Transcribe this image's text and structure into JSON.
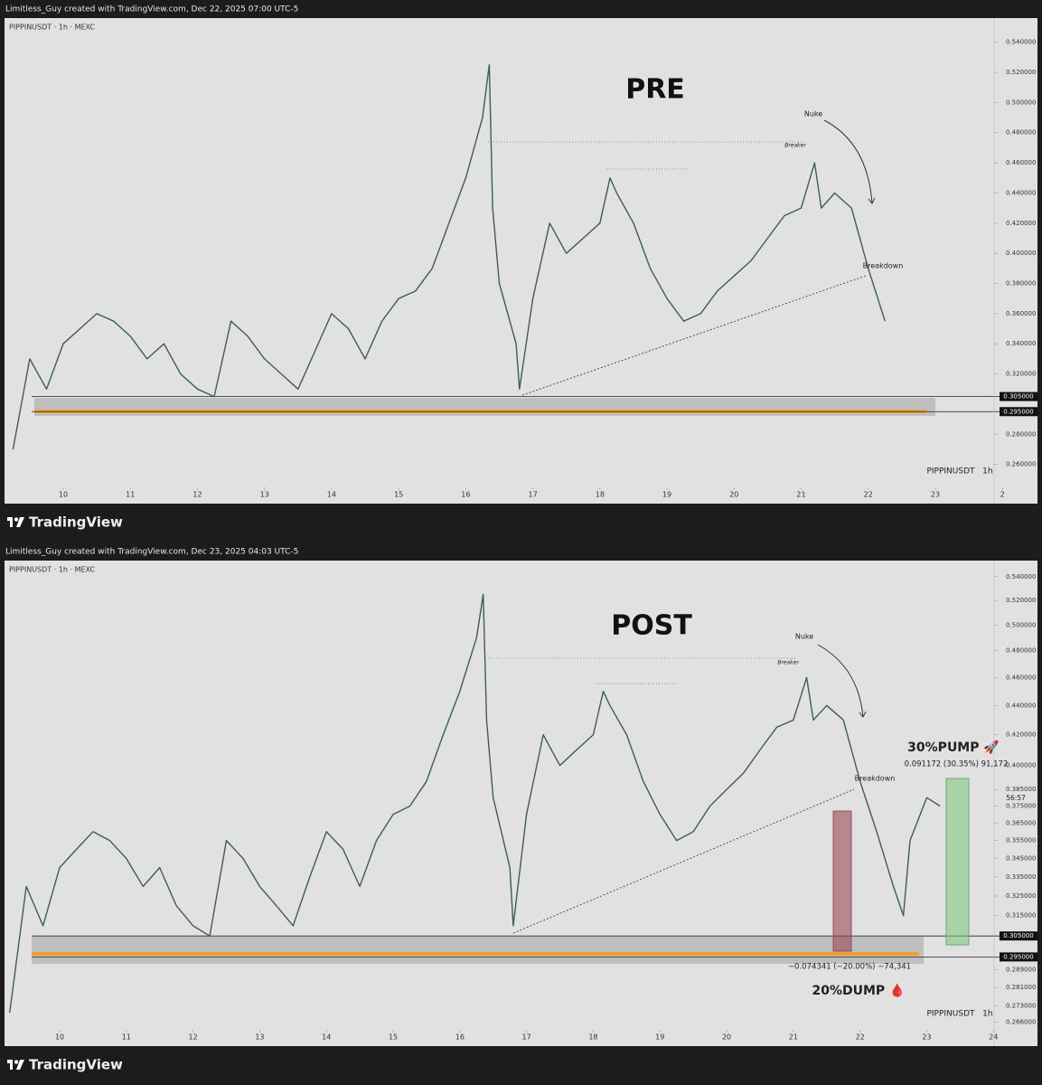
{
  "charts": [
    {
      "chart_data": {
        "type": "line",
        "header": "Limitless_Guy created with TradingView.com, Dec 22, 2025 07:00 UTC-5",
        "symbol": "PIPPINUSDT · 1h · MEXC",
        "title": "PRE",
        "watermark": "PIPPINUSDT   1h",
        "logo": "TradingView",
        "log_scale": false,
        "color": "#3b5f52",
        "x": [
          9.25,
          9.5,
          9.75,
          10,
          10.25,
          10.5,
          10.75,
          11,
          11.25,
          11.5,
          11.75,
          12,
          12.25,
          12.5,
          12.75,
          13,
          13.25,
          13.5,
          13.75,
          14,
          14.25,
          14.5,
          14.75,
          15,
          15.25,
          15.5,
          15.75,
          16,
          16.25,
          16.35,
          16.4,
          16.5,
          16.75,
          16.8,
          17,
          17.25,
          17.5,
          17.75,
          18,
          18.15,
          18.25,
          18.5,
          18.75,
          19,
          19.25,
          19.5,
          19.75,
          20,
          20.25,
          20.5,
          20.75,
          21,
          21.2,
          21.3,
          21.5,
          21.75,
          22,
          22.25
        ],
        "values": [
          0.27,
          0.33,
          0.31,
          0.34,
          0.35,
          0.36,
          0.355,
          0.345,
          0.33,
          0.34,
          0.32,
          0.31,
          0.305,
          0.355,
          0.345,
          0.33,
          0.32,
          0.31,
          0.335,
          0.36,
          0.35,
          0.33,
          0.355,
          0.37,
          0.375,
          0.39,
          0.42,
          0.45,
          0.49,
          0.525,
          0.43,
          0.38,
          0.34,
          0.31,
          0.37,
          0.42,
          0.4,
          0.41,
          0.42,
          0.45,
          0.44,
          0.42,
          0.39,
          0.37,
          0.355,
          0.36,
          0.375,
          0.385,
          0.395,
          0.41,
          0.425,
          0.43,
          0.46,
          0.43,
          0.44,
          0.43,
          0.39,
          0.355
        ],
        "xlim": [
          9.124,
          23.876
        ],
        "ylim": [
          0.234,
          0.556
        ],
        "xticks": [
          10,
          11,
          12,
          13,
          14,
          15,
          16,
          17,
          18,
          19,
          20,
          21,
          22,
          23,
          {
            "value": 24,
            "label": "2"
          }
        ],
        "yticks": [
          {
            "value": 0.54,
            "label": "0.540000"
          },
          {
            "value": 0.52,
            "label": "0.520000"
          },
          {
            "value": 0.5,
            "label": "0.500000"
          },
          {
            "value": 0.48,
            "label": "0.480000"
          },
          {
            "value": 0.46,
            "label": "0.460000"
          },
          {
            "value": 0.44,
            "label": "0.440000"
          },
          {
            "value": 0.42,
            "label": "0.420000"
          },
          {
            "value": 0.4,
            "label": "0.400000"
          },
          {
            "value": 0.38,
            "label": "0.380000"
          },
          {
            "value": 0.36,
            "label": "0.360000"
          },
          {
            "value": 0.34,
            "label": "0.340000"
          },
          {
            "value": 0.32,
            "label": "0.320000"
          },
          {
            "value": 0.28,
            "label": "0.280000"
          },
          {
            "value": 0.26,
            "label": "0.260000"
          }
        ],
        "levels": [
          {
            "value": 0.305,
            "label": "0.305000"
          },
          {
            "value": 0.295,
            "label": "0.295000"
          }
        ],
        "annotations": {
          "nuke": "Nuke",
          "breaker": "Breaker",
          "breakdown": "Breakdown"
        }
      }
    },
    {
      "chart_data": {
        "type": "line",
        "header": "Limitless_Guy created with TradingView.com, Dec 23, 2025 04:03 UTC-5",
        "symbol": "PIPPINUSDT · 1h · MEXC",
        "title": "POST",
        "watermark": "PIPPINUSDT   1h",
        "logo": "TradingView",
        "log_scale": true,
        "color": "#3b5f52",
        "x": [
          9.25,
          9.5,
          9.75,
          10,
          10.25,
          10.5,
          10.75,
          11,
          11.25,
          11.5,
          11.75,
          12,
          12.25,
          12.5,
          12.75,
          13,
          13.25,
          13.5,
          13.75,
          14,
          14.25,
          14.5,
          14.75,
          15,
          15.25,
          15.5,
          15.75,
          16,
          16.25,
          16.35,
          16.4,
          16.5,
          16.75,
          16.8,
          17,
          17.25,
          17.5,
          17.75,
          18,
          18.15,
          18.25,
          18.5,
          18.75,
          19,
          19.25,
          19.5,
          19.75,
          20,
          20.25,
          20.5,
          20.75,
          21,
          21.2,
          21.3,
          21.5,
          21.75,
          22,
          22.25,
          22.5,
          22.65,
          22.75,
          23,
          23.2
        ],
        "values": [
          0.27,
          0.33,
          0.31,
          0.34,
          0.35,
          0.36,
          0.355,
          0.345,
          0.33,
          0.34,
          0.32,
          0.31,
          0.305,
          0.355,
          0.345,
          0.33,
          0.32,
          0.31,
          0.335,
          0.36,
          0.35,
          0.33,
          0.355,
          0.37,
          0.375,
          0.39,
          0.42,
          0.45,
          0.49,
          0.525,
          0.43,
          0.38,
          0.34,
          0.31,
          0.37,
          0.42,
          0.4,
          0.41,
          0.42,
          0.45,
          0.44,
          0.42,
          0.39,
          0.37,
          0.355,
          0.36,
          0.375,
          0.385,
          0.395,
          0.41,
          0.425,
          0.43,
          0.46,
          0.43,
          0.44,
          0.43,
          0.39,
          0.36,
          0.33,
          0.315,
          0.355,
          0.38,
          0.375
        ],
        "xlim": [
          9.173,
          24.01
        ],
        "ylim": [
          0.256,
          0.554
        ],
        "xticks": [
          10,
          11,
          12,
          13,
          14,
          15,
          16,
          17,
          18,
          19,
          20,
          21,
          22,
          23,
          24
        ],
        "yticks": [
          {
            "value": 0.54,
            "label": "0.540000"
          },
          {
            "value": 0.52,
            "label": "0.520000"
          },
          {
            "value": 0.5,
            "label": "0.500000"
          },
          {
            "value": 0.48,
            "label": "0.480000"
          },
          {
            "value": 0.46,
            "label": "0.460000"
          },
          {
            "value": 0.44,
            "label": "0.440000"
          },
          {
            "value": 0.42,
            "label": "0.420000"
          },
          {
            "value": 0.4,
            "label": "0.400000"
          },
          {
            "value": 0.385,
            "label": "0.385000"
          },
          {
            "value": 0.375,
            "label": "0.375000"
          },
          {
            "value": 0.365,
            "label": "0.365000"
          },
          {
            "value": 0.355,
            "label": "0.355000"
          },
          {
            "value": 0.345,
            "label": "0.345000"
          },
          {
            "value": 0.335,
            "label": "0.335000"
          },
          {
            "value": 0.325,
            "label": "0.325000"
          },
          {
            "value": 0.315,
            "label": "0.315000"
          },
          {
            "value": 0.289,
            "label": "0.289000"
          },
          {
            "value": 0.281,
            "label": "0.281000"
          },
          {
            "value": 0.273,
            "label": "0.273000"
          },
          {
            "value": 0.266,
            "label": "0.266000"
          }
        ],
        "levels": [
          {
            "value": 0.305,
            "label": "0.305000"
          },
          {
            "value": 0.295,
            "label": "0.295000"
          }
        ],
        "annotations": {
          "nuke": "Nuke",
          "breaker": "Breaker",
          "breakdown": "Breakdown",
          "pump": "30%PUMP 🚀",
          "pump_measure": "0.091172 (30.35%) 91,172",
          "dump_measure": "−0.074341 (−20.00%) −74,341",
          "dump": "20%DUMP 🩸",
          "countdown": "56:57"
        }
      }
    }
  ]
}
